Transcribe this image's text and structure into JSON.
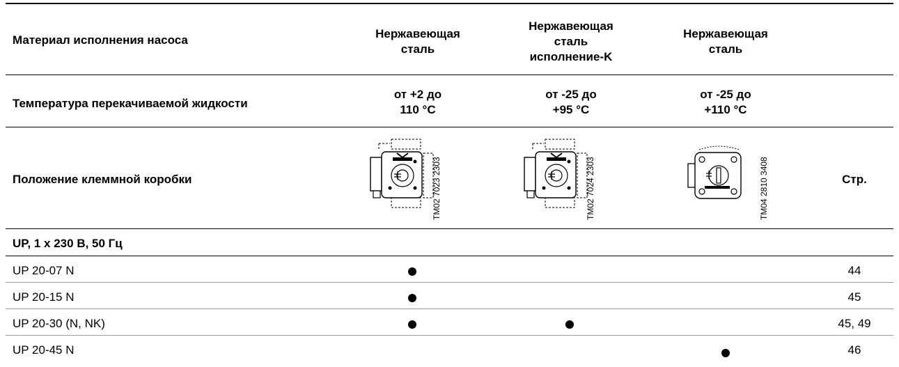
{
  "table": {
    "headers": {
      "material_label": "Материал исполнения насоса",
      "material": [
        "Нержавеющая\nсталь",
        "Нержавеющая\nсталь\nисполнение-K",
        "Нержавеющая\nсталь"
      ],
      "temperature_label": "Температура перекачиваемой жидкости",
      "temperature": [
        "от +2 до\n110 °C",
        "от -25 до\n+95 °C",
        "от -25 до\n+110 °C"
      ],
      "terminal_box_label": "Положение клеммной коробки",
      "drawing_codes": [
        "TM02 7023 2303",
        "TM02 7024 2303",
        "TM04 2810 3408"
      ],
      "page_header": "Стр."
    },
    "section_title": "UP, 1 x 230 В, 50 Гц",
    "rows": [
      {
        "name": "UP 20-07 N",
        "marks": [
          true,
          false,
          false
        ],
        "page": "44"
      },
      {
        "name": "UP 20-15 N",
        "marks": [
          true,
          false,
          false
        ],
        "page": "45"
      },
      {
        "name": "UP 20-30 (N, NK)",
        "marks": [
          true,
          true,
          false
        ],
        "page": "45, 49"
      },
      {
        "name": "UP 20-45 N",
        "marks": [
          false,
          false,
          true
        ],
        "page": "46"
      }
    ]
  }
}
